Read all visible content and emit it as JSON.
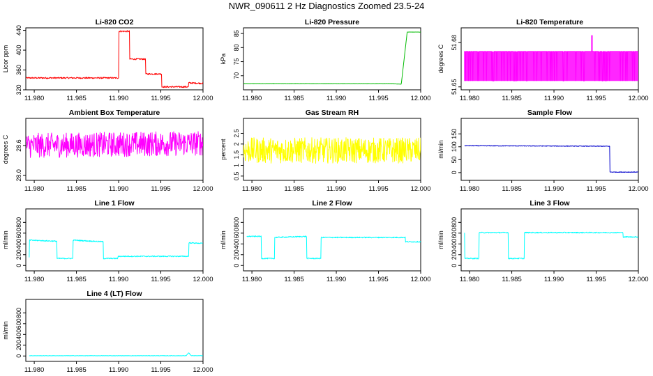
{
  "figure_title": "NWR_090611  2 Hz Diagnostics Zoomed 23.5-24",
  "chart_data": [
    {
      "type": "line",
      "title": "Li-820 CO2",
      "xlabel": "",
      "ylabel": "Licor ppm",
      "color": "#ff0000",
      "xlim": [
        11.979,
        12.0
      ],
      "ylim": [
        320,
        445
      ],
      "xticks": [
        "11.980",
        "11.985",
        "11.990",
        "11.995",
        "12.000"
      ],
      "yticks": [
        320,
        360,
        400,
        440
      ],
      "yticklabels": [
        "320",
        "360",
        "400",
        "440"
      ],
      "series": [
        {
          "x": [
            11.979,
            11.99,
            11.99,
            11.9913,
            11.9913,
            11.9932,
            11.9932,
            11.9951,
            11.9951,
            11.9983,
            11.9983,
            12.0
          ],
          "y": [
            344,
            344,
            438,
            438,
            382,
            382,
            352,
            352,
            326,
            326,
            334,
            333
          ],
          "noise": 1.5
        }
      ]
    },
    {
      "type": "line",
      "title": "Li-820 Pressure",
      "xlabel": "",
      "ylabel": "kPa",
      "color": "#00bb00",
      "xlim": [
        11.979,
        12.0
      ],
      "ylim": [
        65,
        87
      ],
      "xticks": [
        "11.980",
        "11.985",
        "11.990",
        "11.995",
        "12.000"
      ],
      "yticks": [
        70,
        75,
        80,
        85
      ],
      "yticklabels": [
        "70",
        "75",
        "80",
        "85"
      ],
      "series": [
        {
          "x": [
            11.979,
            11.9965,
            11.9977,
            11.9984,
            12.0
          ],
          "y": [
            67.2,
            67.2,
            67.0,
            85.5,
            85.5
          ],
          "noise": 0.05
        }
      ]
    },
    {
      "type": "line",
      "title": "Li-820 Temperature",
      "xlabel": "",
      "ylabel": "degrees C",
      "color": "#ff00ff",
      "xlim": [
        11.979,
        12.0
      ],
      "ylim": [
        51.648,
        51.69
      ],
      "xticks": [
        "11.980",
        "11.985",
        "11.990",
        "11.995",
        "12.000"
      ],
      "yticks": [
        51.65,
        51.68
      ],
      "yticklabels": [
        "51.65",
        "51.68"
      ],
      "series": [
        {
          "x": [
            11.9794,
            12.0
          ],
          "levels": [
            51.654,
            51.674
          ],
          "spike": {
            "x": 11.9945,
            "y": 51.685
          }
        }
      ]
    },
    {
      "type": "line",
      "title": "Ambient Box Temperature",
      "xlabel": "",
      "ylabel": "degrees C",
      "color": "#ff00ff",
      "xlim": [
        11.979,
        12.0
      ],
      "ylim": [
        27.9,
        29.15
      ],
      "xticks": [
        "11.980",
        "11.985",
        "11.990",
        "11.995",
        "12.000"
      ],
      "yticks": [
        28.0,
        28.6
      ],
      "yticklabels": [
        "28.0",
        "28.6"
      ],
      "series": [
        {
          "x": [
            11.979,
            12.0
          ],
          "y": [
            28.6,
            28.65
          ],
          "noise": 0.25
        }
      ]
    },
    {
      "type": "line",
      "title": "Gas Stream RH",
      "xlabel": "",
      "ylabel": "percent",
      "color": "#ffff00",
      "xlim": [
        11.979,
        12.0
      ],
      "ylim": [
        0.3,
        3.2
      ],
      "xticks": [
        "11.980",
        "11.985",
        "11.990",
        "11.995",
        "12.000"
      ],
      "yticks": [
        0.5,
        1.0,
        1.5,
        2.0,
        2.5
      ],
      "yticklabels": [
        "0.5",
        "1",
        "1.5",
        "2",
        "2.5"
      ],
      "series": [
        {
          "x": [
            11.979,
            12.0
          ],
          "y": [
            1.7,
            1.7
          ],
          "noise": 0.6
        }
      ]
    },
    {
      "type": "line",
      "title": "Sample Flow",
      "xlabel": "",
      "ylabel": "ml/min",
      "color": "#0000cc",
      "xlim": [
        11.979,
        12.0
      ],
      "ylim": [
        -30,
        210
      ],
      "xticks": [
        "11.980",
        "11.985",
        "11.990",
        "11.995",
        "12.000"
      ],
      "yticks": [
        0,
        50,
        100,
        150
      ],
      "yticklabels": [
        "0",
        "50",
        "100",
        "150"
      ],
      "series": [
        {
          "x": [
            11.9794,
            11.9966,
            11.9966,
            12.0
          ],
          "y": [
            104,
            102,
            2,
            2
          ],
          "noise": 1.2
        }
      ]
    },
    {
      "type": "line",
      "title": "Line 1 Flow",
      "xlabel": "",
      "ylabel": "ml/min",
      "color": "#00ffff",
      "xlim": [
        11.979,
        12.0
      ],
      "ylim": [
        -100,
        1050
      ],
      "xticks": [
        "11.980",
        "11.985",
        "11.990",
        "11.995",
        "12.000"
      ],
      "yticks": [
        0,
        200,
        400,
        600,
        800
      ],
      "yticklabels": [
        "0",
        "200",
        "400",
        "600",
        "800"
      ],
      "series": [
        {
          "x": [
            11.9794,
            11.9794,
            11.9827,
            11.9827,
            11.9846,
            11.9846,
            11.9882,
            11.9882,
            11.9899,
            11.9899,
            11.9983,
            11.9983,
            12.0
          ],
          "y": [
            150,
            470,
            450,
            130,
            130,
            470,
            440,
            130,
            130,
            170,
            170,
            420,
            410
          ],
          "noise": 10
        }
      ]
    },
    {
      "type": "line",
      "title": "Line 2 Flow",
      "xlabel": "",
      "ylabel": "ml/min",
      "color": "#00ffff",
      "xlim": [
        11.979,
        12.0
      ],
      "ylim": [
        -100,
        1050
      ],
      "xticks": [
        "11.980",
        "11.985",
        "11.990",
        "11.995",
        "12.000"
      ],
      "yticks": [
        0,
        200,
        400,
        600,
        800
      ],
      "yticklabels": [
        "0",
        "200",
        "400",
        "600",
        "800"
      ],
      "series": [
        {
          "x": [
            11.9794,
            11.9811,
            11.9811,
            11.9827,
            11.9827,
            11.9865,
            11.9865,
            11.9882,
            11.9882,
            11.9982,
            11.9982,
            12.0
          ],
          "y": [
            540,
            540,
            130,
            130,
            520,
            540,
            130,
            130,
            520,
            520,
            440,
            440
          ],
          "noise": 10
        }
      ]
    },
    {
      "type": "line",
      "title": "Line 3 Flow",
      "xlabel": "",
      "ylabel": "ml/min",
      "color": "#00ffff",
      "xlim": [
        11.979,
        12.0
      ],
      "ylim": [
        -100,
        1050
      ],
      "xticks": [
        "11.980",
        "11.985",
        "11.990",
        "11.995",
        "12.000"
      ],
      "yticks": [
        0,
        200,
        400,
        600,
        800
      ],
      "yticklabels": [
        "0",
        "200",
        "400",
        "600",
        "800"
      ],
      "series": [
        {
          "x": [
            11.9794,
            11.9794,
            11.9811,
            11.9811,
            11.9846,
            11.9846,
            11.9865,
            11.9865,
            11.9982,
            11.9982,
            12.0
          ],
          "y": [
            600,
            130,
            130,
            610,
            610,
            130,
            130,
            610,
            610,
            530,
            530
          ],
          "noise": 10
        }
      ]
    },
    {
      "type": "line",
      "title": "Line 4 (LT) Flow",
      "xlabel": "",
      "ylabel": "ml/min",
      "color": "#00ffff",
      "xlim": [
        11.979,
        12.0
      ],
      "ylim": [
        -100,
        1050
      ],
      "xticks": [
        "11.980",
        "11.985",
        "11.990",
        "11.995",
        "12.000"
      ],
      "yticks": [
        0,
        200,
        400,
        600,
        800
      ],
      "yticklabels": [
        "0",
        "200",
        "400",
        "600",
        "800"
      ],
      "series": [
        {
          "x": [
            11.9794,
            11.998,
            11.9983,
            11.9986,
            12.0
          ],
          "y": [
            5,
            5,
            60,
            5,
            5
          ],
          "noise": 3
        }
      ]
    }
  ]
}
